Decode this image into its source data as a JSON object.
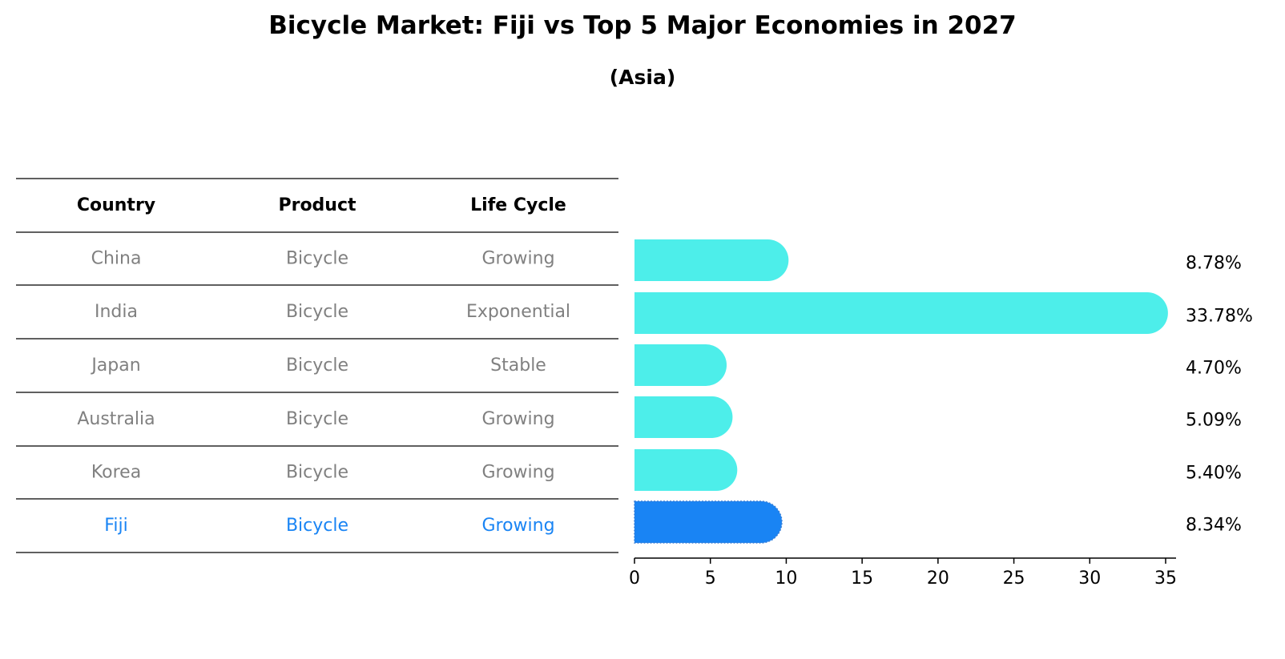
{
  "title": "Bicycle Market: Fiji vs Top 5 Major Economies in 2027",
  "subtitle": "(Asia)",
  "table": {
    "headers": [
      "Country",
      "Product",
      "Life Cycle"
    ],
    "rows": [
      {
        "country": "China",
        "product": "Bicycle",
        "life_cycle": "Growing"
      },
      {
        "country": "India",
        "product": "Bicycle",
        "life_cycle": "Exponential"
      },
      {
        "country": "Japan",
        "product": "Bicycle",
        "life_cycle": "Stable"
      },
      {
        "country": "Australia",
        "product": "Bicycle",
        "life_cycle": "Growing"
      },
      {
        "country": "Korea",
        "product": "Bicycle",
        "life_cycle": "Growing"
      },
      {
        "country": "Fiji",
        "product": "Bicycle",
        "life_cycle": "Growing"
      }
    ]
  },
  "chart_data": {
    "type": "bar",
    "orientation": "horizontal",
    "categories": [
      "China",
      "India",
      "Japan",
      "Australia",
      "Korea",
      "Fiji"
    ],
    "values": [
      8.78,
      33.78,
      4.7,
      5.09,
      5.4,
      8.34
    ],
    "value_labels": [
      "8.78%",
      "33.78%",
      "4.70%",
      "5.09%",
      "5.40%",
      "8.34%"
    ],
    "highlight": "Fiji",
    "xlim": [
      0,
      35
    ],
    "xticks": [
      0,
      5,
      10,
      15,
      20,
      25,
      30,
      35
    ],
    "xtick_labels": [
      "0",
      "5",
      "10",
      "15",
      "20",
      "25",
      "30",
      "35"
    ],
    "grid": false
  },
  "colors": {
    "bar": "#4deeea",
    "highlight_bar": "#1984f4",
    "table_text": "#808080",
    "highlight_text": "#1984f4",
    "header_text": "#000000"
  }
}
